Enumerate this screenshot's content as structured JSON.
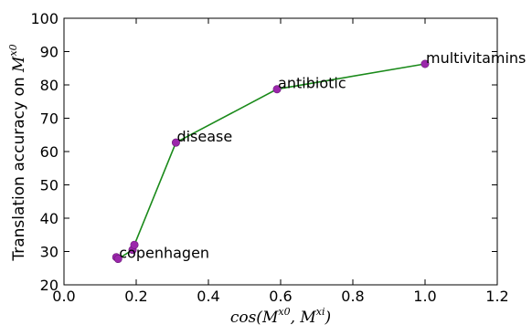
{
  "chart_data": {
    "type": "line",
    "x": [
      0.145,
      0.15,
      0.19,
      0.195,
      0.31,
      0.59,
      1.0
    ],
    "y": [
      28.3,
      27.8,
      30.5,
      32.0,
      62.7,
      78.7,
      86.3
    ],
    "xlim": [
      0.0,
      1.2
    ],
    "ylim": [
      20,
      100
    ],
    "xticks": [
      "0.0",
      "0.2",
      "0.4",
      "0.6",
      "0.8",
      "1.0",
      "1.2"
    ],
    "yticks": [
      "20",
      "30",
      "40",
      "50",
      "60",
      "70",
      "80",
      "90",
      "100"
    ],
    "xlabel": {
      "base": "cos(M",
      "sup1": "x0",
      "mid": ", M",
      "sup2": "xi",
      "end": ")"
    },
    "ylabel": {
      "text": "Translation accuracy on ",
      "math_base": "M",
      "math_sup": "x0"
    },
    "annotations": [
      {
        "text": "copenhagen",
        "x": 0.15,
        "y": 27.8
      },
      {
        "text": "disease",
        "x": 0.31,
        "y": 62.7
      },
      {
        "text": "antibiotic",
        "x": 0.59,
        "y": 78.7
      },
      {
        "text": "multivitamins",
        "x": 1.0,
        "y": 86.3
      }
    ],
    "line_color": "#1a8a1a",
    "marker_color": "#9b27ab",
    "grid": false
  }
}
